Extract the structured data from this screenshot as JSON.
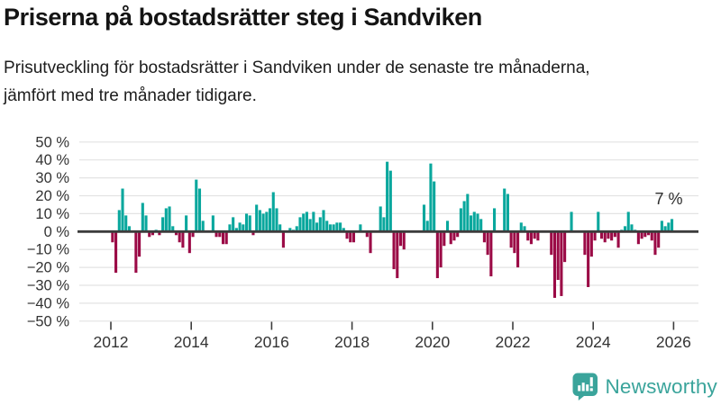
{
  "title": "Priserna på bostadsrätter steg i Sandviken",
  "subtitle": "Prisutveckling för bostadsrätter i Sandviken under de senaste tre månaderna, jämfört med tre månader tidigare.",
  "annotation": {
    "latest_value_label": "7 %"
  },
  "branding": {
    "name": "Newsworthy",
    "icon": "bar-chart-speech-bubble-icon"
  },
  "colors": {
    "positive_bar": "#09A79D",
    "negative_bar": "#9B0A46",
    "gridline": "#E3E3E3",
    "zero_line": "#3C3C3C",
    "axis_text": "#333333",
    "brand_teal": "#3AA49B"
  },
  "chart_data": {
    "type": "bar",
    "unit": "%",
    "frequency": "monthly",
    "start": {
      "year": 2012,
      "month": 1
    },
    "ylim": [
      -50,
      50
    ],
    "yticks": [
      50,
      40,
      30,
      20,
      10,
      0,
      -10,
      -20,
      -30,
      -40,
      -50
    ],
    "ytick_labels": [
      "50 %",
      "40 %",
      "30 %",
      "20 %",
      "10 %",
      "0 %",
      "−10 %",
      "−20 %",
      "−30 %",
      "−40 %",
      "−50 %"
    ],
    "xticks": [
      2012,
      2014,
      2016,
      2018,
      2020,
      2022,
      2024,
      2026
    ],
    "xtick_labels": [
      "2012",
      "2014",
      "2016",
      "2018",
      "2020",
      "2022",
      "2024",
      "2026"
    ],
    "grid": true,
    "legend": "none",
    "latest_value_label": "7 %",
    "series": [
      {
        "year": 2012,
        "values": [
          -6,
          -23,
          12,
          24,
          9,
          3,
          0,
          -23,
          -14,
          16,
          9,
          -3
        ]
      },
      {
        "year": 2013,
        "values": [
          -2,
          1,
          -2,
          8,
          13,
          14,
          3,
          -2,
          -6,
          -9,
          9,
          -12
        ]
      },
      {
        "year": 2014,
        "values": [
          -3,
          29,
          24,
          6,
          0,
          0,
          9,
          -3,
          -3,
          -7,
          -7,
          4
        ]
      },
      {
        "year": 2015,
        "values": [
          8,
          2,
          5,
          4,
          10,
          9,
          -2,
          15,
          12,
          10,
          11,
          13
        ]
      },
      {
        "year": 2016,
        "values": [
          22,
          13,
          4,
          -9,
          0,
          2,
          1,
          3,
          8,
          10,
          11,
          7
        ]
      },
      {
        "year": 2017,
        "values": [
          11,
          5,
          8,
          12,
          6,
          4,
          4,
          5,
          5,
          2,
          -4,
          -6
        ]
      },
      {
        "year": 2018,
        "values": [
          -6,
          0,
          4,
          0,
          -3,
          -12,
          0,
          0,
          14,
          8,
          39,
          34
        ]
      },
      {
        "year": 2019,
        "values": [
          -21,
          -26,
          -8,
          -10,
          0,
          0,
          0,
          0,
          0,
          15,
          6,
          38
        ]
      },
      {
        "year": 2020,
        "values": [
          28,
          -26,
          -20,
          -8,
          6,
          -7,
          -5,
          -3,
          13,
          17,
          21,
          9
        ]
      },
      {
        "year": 2021,
        "values": [
          11,
          10,
          7,
          -6,
          -13,
          -25,
          13,
          0,
          0,
          24,
          21,
          -9
        ]
      },
      {
        "year": 2022,
        "values": [
          -12,
          -20,
          5,
          3,
          -5,
          -7,
          -4,
          -5,
          0,
          0,
          0,
          -13
        ]
      },
      {
        "year": 2023,
        "values": [
          -37,
          -27,
          -36,
          -17,
          0,
          11,
          0,
          0,
          0,
          -13,
          -31,
          -14
        ]
      },
      {
        "year": 2024,
        "values": [
          -5,
          11,
          -4,
          -6,
          -4,
          -5,
          -3,
          -9,
          1,
          3,
          11,
          4
        ]
      },
      {
        "year": 2025,
        "values": [
          1,
          -7,
          -4,
          -3,
          -2,
          -5,
          -13,
          -9,
          6,
          3,
          5,
          7
        ]
      }
    ]
  }
}
